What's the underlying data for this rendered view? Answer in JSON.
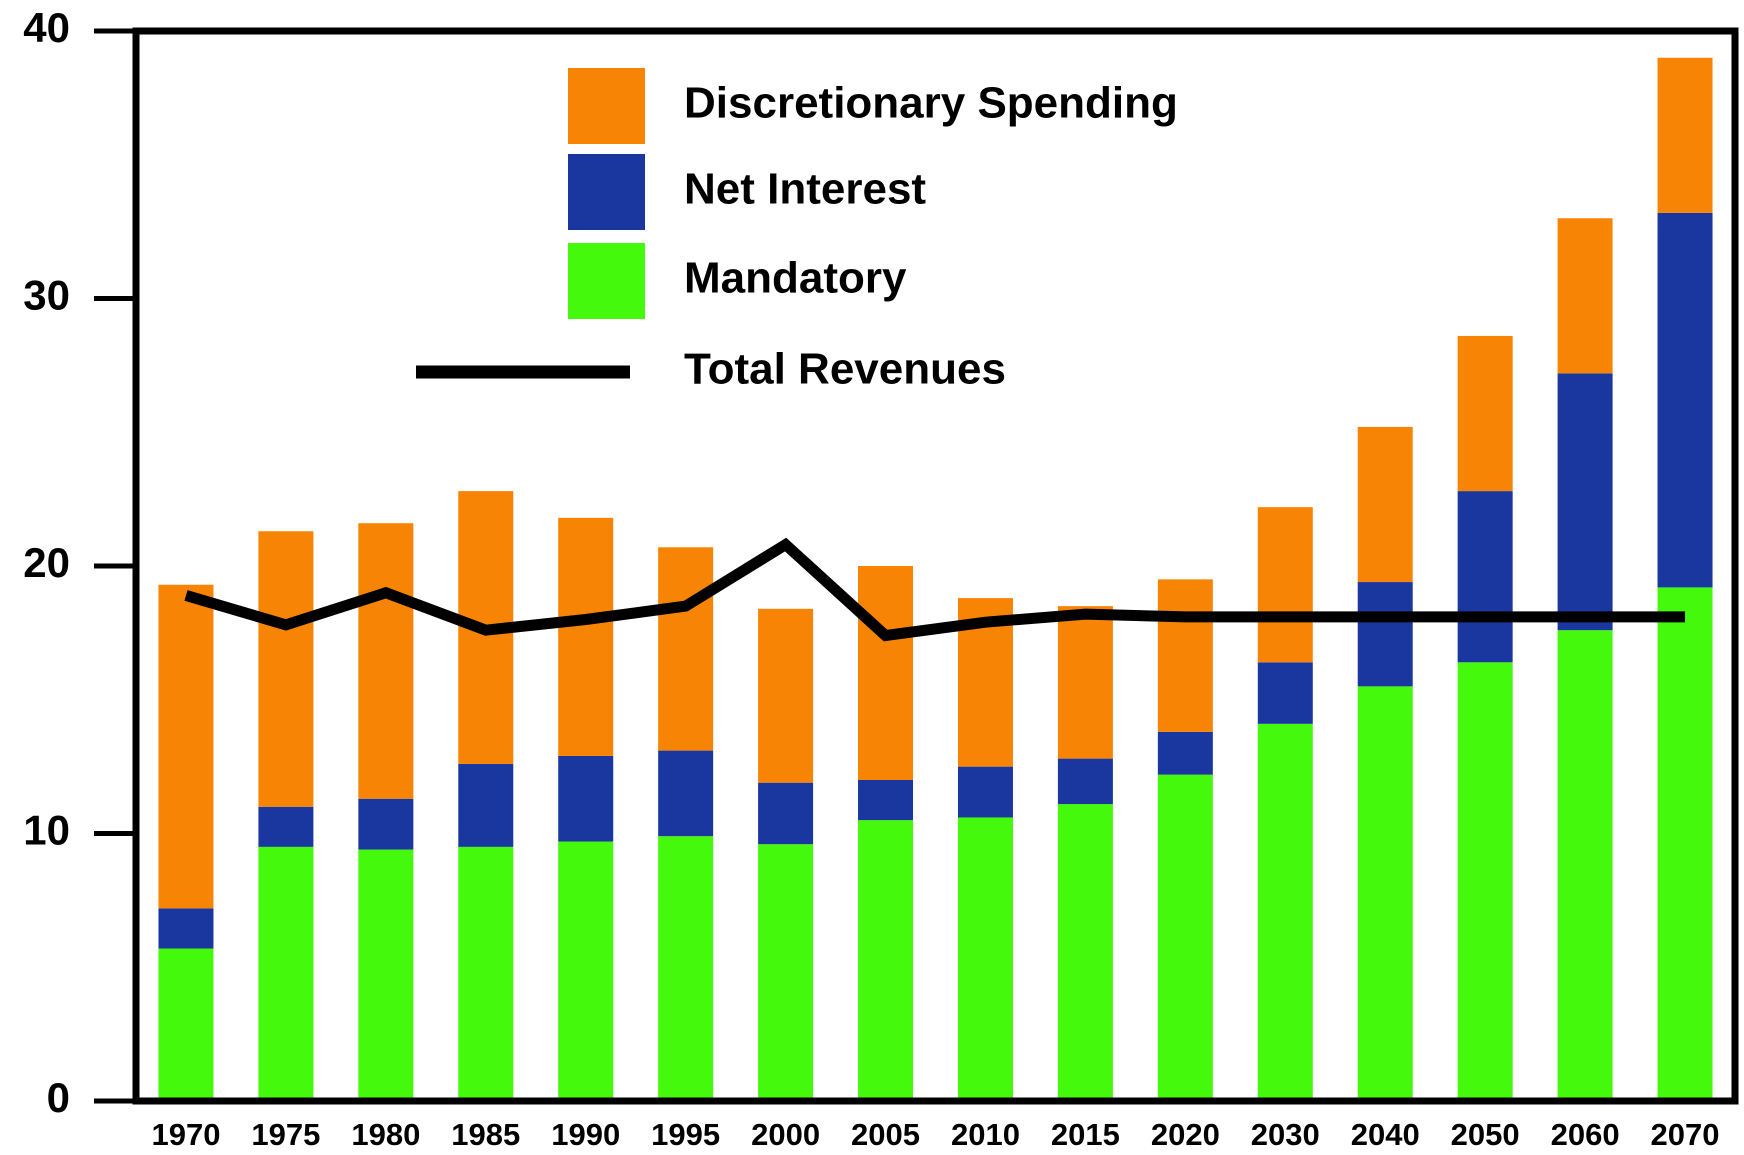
{
  "chart_data": {
    "type": "stacked_bar_line",
    "categories": [
      "1970",
      "1975",
      "1980",
      "1985",
      "1990",
      "1995",
      "2000",
      "2005",
      "2010",
      "2015",
      "2020",
      "2030",
      "2040",
      "2050",
      "2060",
      "2070"
    ],
    "series": [
      {
        "name": "Mandatory",
        "color": "#44f90b",
        "values": [
          5.7,
          9.5,
          9.4,
          9.5,
          9.7,
          9.9,
          9.6,
          10.5,
          10.6,
          11.1,
          12.2,
          14.1,
          15.5,
          16.4,
          17.6,
          19.2
        ]
      },
      {
        "name": "Net Interest",
        "color": "#1a37a0",
        "values": [
          1.5,
          1.5,
          1.9,
          3.1,
          3.2,
          3.2,
          2.3,
          1.5,
          1.9,
          1.7,
          1.6,
          2.3,
          3.9,
          6.4,
          9.6,
          14.0
        ]
      },
      {
        "name": "Discretionary Spending",
        "color": "#f88405",
        "values": [
          12.1,
          10.3,
          10.3,
          10.2,
          8.9,
          7.6,
          6.5,
          8.0,
          6.3,
          5.7,
          5.7,
          5.8,
          5.8,
          5.8,
          5.8,
          5.8
        ]
      },
      {
        "name": "Total Revenues",
        "type": "line",
        "color": "#000000",
        "values": [
          18.9,
          17.8,
          19.0,
          17.6,
          18.0,
          18.5,
          20.8,
          17.4,
          17.9,
          18.2,
          18.1,
          18.1,
          18.1,
          18.1,
          18.1,
          18.1
        ]
      }
    ],
    "ylim": [
      0,
      40
    ],
    "yticks": [
      0,
      10,
      20,
      30,
      40
    ],
    "grid": false
  }
}
